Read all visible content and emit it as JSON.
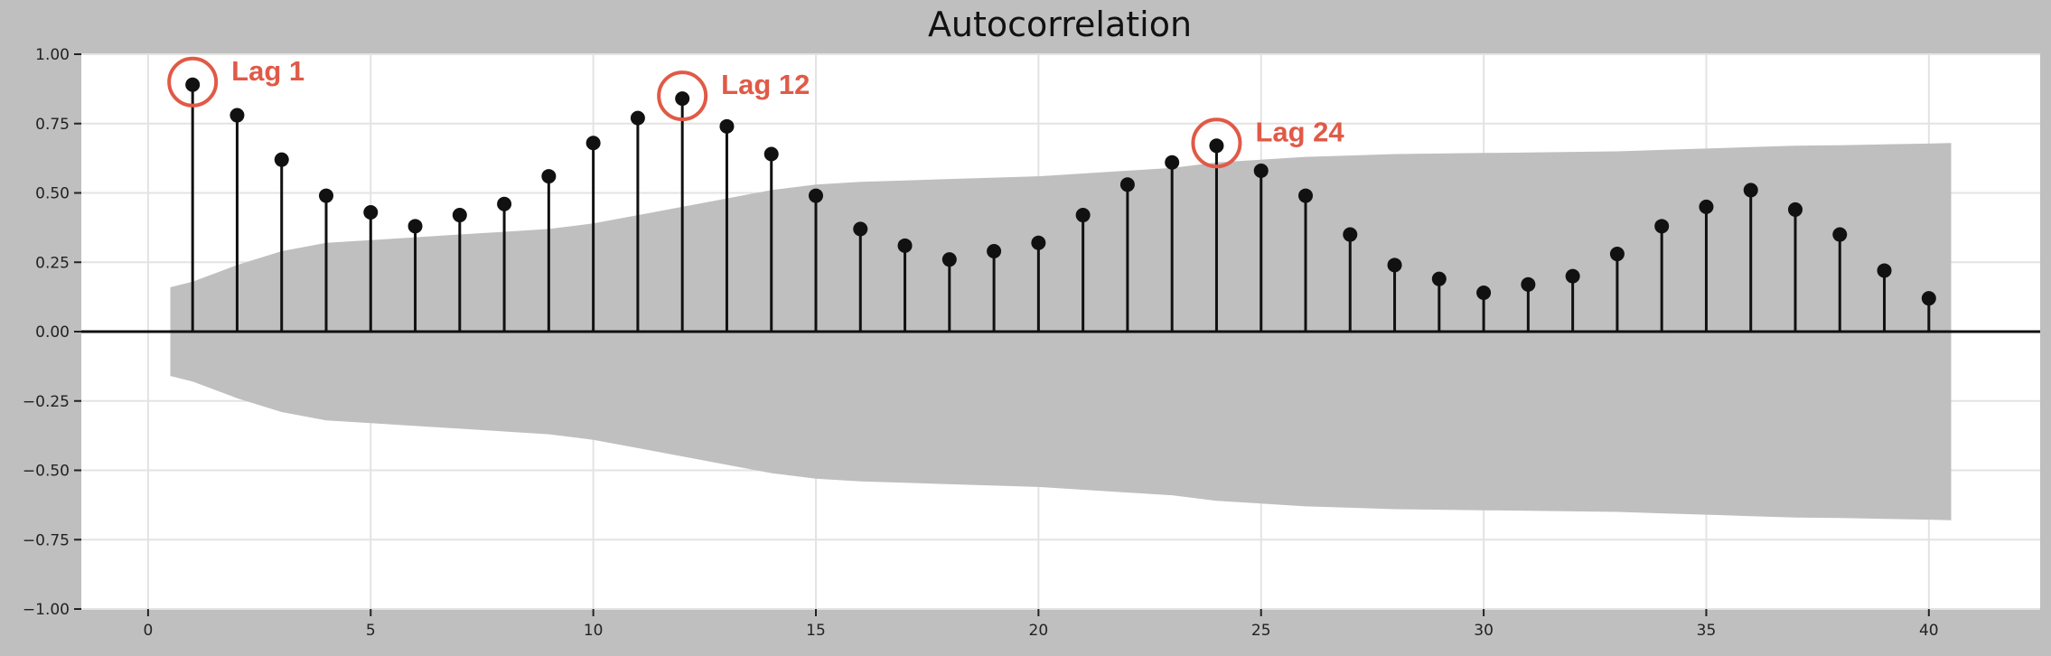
{
  "chart_data": {
    "type": "stem",
    "title": "Autocorrelation",
    "xlabel": "",
    "ylabel": "",
    "xlim": [
      -1.5,
      42.5
    ],
    "ylim": [
      -1.0,
      1.0
    ],
    "x_ticks": [
      0,
      5,
      10,
      15,
      20,
      25,
      30,
      35,
      40
    ],
    "x_tick_labels": [
      "0",
      "5",
      "10",
      "15",
      "20",
      "25",
      "30",
      "35",
      "40"
    ],
    "y_ticks": [
      1.0,
      0.75,
      0.5,
      0.25,
      0.0,
      -0.25,
      -0.5,
      -0.75,
      -1.0
    ],
    "y_tick_labels": [
      "1.00",
      "0.75",
      "0.50",
      "0.25",
      "0.00",
      "−0.25",
      "−0.50",
      "−0.75",
      "−1.00"
    ],
    "grid": true,
    "lags": [
      1,
      2,
      3,
      4,
      5,
      6,
      7,
      8,
      9,
      10,
      11,
      12,
      13,
      14,
      15,
      16,
      17,
      18,
      19,
      20,
      21,
      22,
      23,
      24,
      25,
      26,
      27,
      28,
      29,
      30,
      31,
      32,
      33,
      34,
      35,
      36,
      37,
      38,
      39,
      40
    ],
    "values": [
      0.89,
      0.78,
      0.62,
      0.49,
      0.43,
      0.38,
      0.42,
      0.46,
      0.56,
      0.68,
      0.77,
      0.84,
      0.74,
      0.64,
      0.49,
      0.37,
      0.31,
      0.26,
      0.29,
      0.32,
      0.42,
      0.53,
      0.61,
      0.67,
      0.58,
      0.49,
      0.35,
      0.24,
      0.19,
      0.14,
      0.17,
      0.2,
      0.28,
      0.38,
      0.45,
      0.51,
      0.44,
      0.35,
      0.22,
      0.12
    ],
    "confidence_band": {
      "lags": [
        0.5,
        1,
        2,
        3,
        4,
        5,
        6,
        7,
        8,
        9,
        10,
        11,
        12,
        13,
        14,
        15,
        16,
        17,
        18,
        19,
        20,
        21,
        22,
        23,
        24,
        25,
        26,
        27,
        28,
        29,
        30,
        31,
        32,
        33,
        34,
        35,
        36,
        37,
        38,
        39,
        40,
        40.5
      ],
      "upper": [
        0.16,
        0.18,
        0.24,
        0.29,
        0.32,
        0.33,
        0.34,
        0.35,
        0.36,
        0.37,
        0.39,
        0.42,
        0.45,
        0.48,
        0.51,
        0.53,
        0.54,
        0.545,
        0.55,
        0.555,
        0.56,
        0.57,
        0.58,
        0.59,
        0.61,
        0.62,
        0.63,
        0.635,
        0.64,
        0.642,
        0.644,
        0.646,
        0.648,
        0.65,
        0.655,
        0.66,
        0.665,
        0.67,
        0.672,
        0.675,
        0.678,
        0.68
      ],
      "lower": [
        -0.16,
        -0.18,
        -0.24,
        -0.29,
        -0.32,
        -0.33,
        -0.34,
        -0.35,
        -0.36,
        -0.37,
        -0.39,
        -0.42,
        -0.45,
        -0.48,
        -0.51,
        -0.53,
        -0.54,
        -0.545,
        -0.55,
        -0.555,
        -0.56,
        -0.57,
        -0.58,
        -0.59,
        -0.61,
        -0.62,
        -0.63,
        -0.635,
        -0.64,
        -0.642,
        -0.644,
        -0.646,
        -0.648,
        -0.65,
        -0.655,
        -0.66,
        -0.665,
        -0.67,
        -0.672,
        -0.675,
        -0.678,
        -0.68
      ]
    },
    "annotations": [
      {
        "lag": 1,
        "label": "Lag 1"
      },
      {
        "lag": 12,
        "label": "Lag 12"
      },
      {
        "lag": 24,
        "label": "Lag 24"
      }
    ],
    "colors": {
      "background": "#bfbfbf",
      "plot_area": "#ffffff",
      "grid": "#e3e3e3",
      "band": "#bfbfbf",
      "stem": "#111111",
      "marker": "#111111",
      "zero_line": "#111111",
      "annotation": "#e05a47"
    }
  }
}
